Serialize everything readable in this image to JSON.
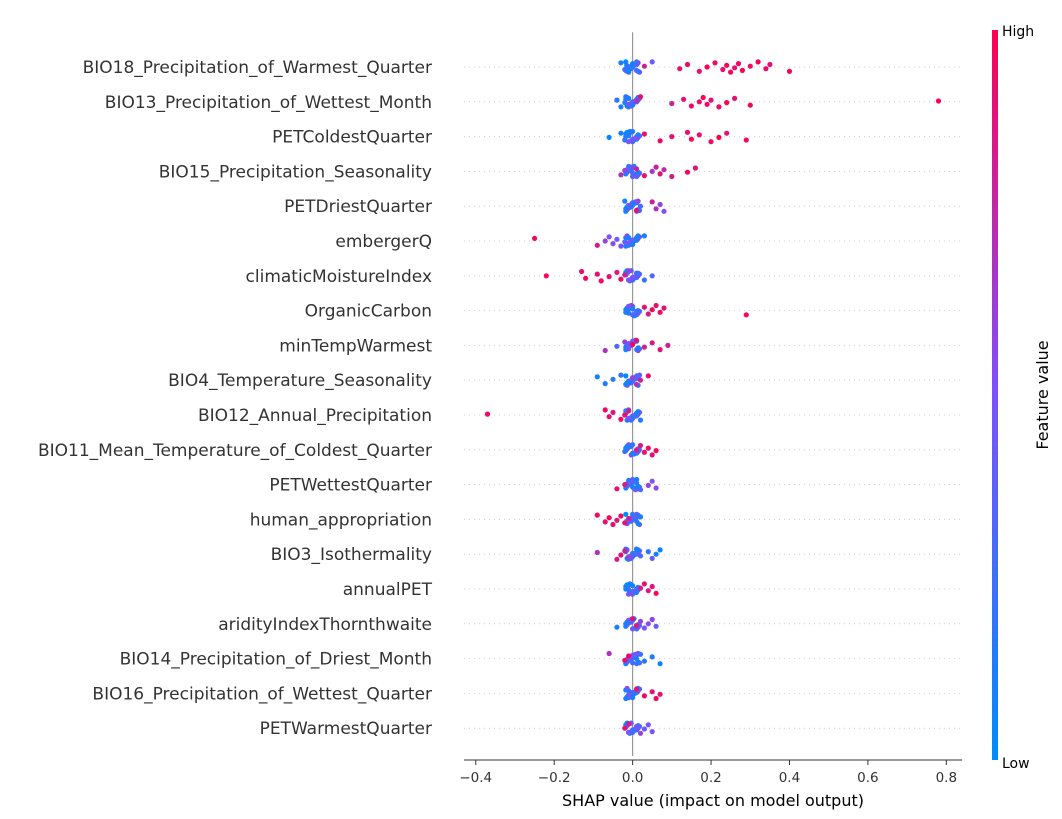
{
  "chart_data": {
    "type": "scatter",
    "subtype": "shap-beeswarm",
    "xlabel": "SHAP value (impact on model output)",
    "xlim": [
      -0.43,
      0.84
    ],
    "xticks": [
      -0.4,
      -0.2,
      0.0,
      0.2,
      0.4,
      0.6,
      0.8
    ],
    "xtick_labels": [
      "−0.4",
      "−0.2",
      "0.0",
      "0.2",
      "0.4",
      "0.6",
      "0.8"
    ],
    "colorbar": {
      "title": "Feature value",
      "high_label": "High",
      "low_label": "Low",
      "high_color": "#ff0051",
      "low_color": "#008bfb"
    },
    "features": [
      {
        "name": "BIO18_Precipitation_of_Warmest_Quarter",
        "points": [
          [
            -0.03,
            0.1
          ],
          [
            -0.02,
            0.2
          ],
          [
            -0.015,
            0.15
          ],
          [
            -0.01,
            0.1
          ],
          [
            -0.005,
            0.12
          ],
          [
            0.0,
            0.1
          ],
          [
            0.01,
            0.3
          ],
          [
            0.03,
            0.8
          ],
          [
            0.05,
            0.45
          ],
          [
            0.12,
            0.9
          ],
          [
            0.14,
            0.95
          ],
          [
            0.17,
            0.9
          ],
          [
            0.19,
            1.0
          ],
          [
            0.21,
            0.95
          ],
          [
            0.23,
            0.9
          ],
          [
            0.24,
            1.0
          ],
          [
            0.25,
            0.95
          ],
          [
            0.26,
            0.9
          ],
          [
            0.27,
            0.95
          ],
          [
            0.28,
            1.0
          ],
          [
            0.3,
            0.95
          ],
          [
            0.32,
            1.0
          ],
          [
            0.34,
            0.95
          ],
          [
            0.35,
            0.9
          ],
          [
            0.4,
            1.0
          ]
        ]
      },
      {
        "name": "BIO13_Precipitation_of_Wettest_Month",
        "points": [
          [
            -0.04,
            0.15
          ],
          [
            -0.03,
            0.1
          ],
          [
            -0.02,
            0.2
          ],
          [
            -0.01,
            0.1
          ],
          [
            0.0,
            0.15
          ],
          [
            0.01,
            0.7
          ],
          [
            0.02,
            0.9
          ],
          [
            0.1,
            0.8
          ],
          [
            0.13,
            0.9
          ],
          [
            0.15,
            0.95
          ],
          [
            0.17,
            0.9
          ],
          [
            0.18,
            1.0
          ],
          [
            0.19,
            0.95
          ],
          [
            0.2,
            0.9
          ],
          [
            0.22,
            0.95
          ],
          [
            0.24,
            1.0
          ],
          [
            0.26,
            0.9
          ],
          [
            0.3,
            1.0
          ],
          [
            0.78,
            1.0
          ]
        ]
      },
      {
        "name": "PETColdestQuarter",
        "points": [
          [
            -0.06,
            0.05
          ],
          [
            -0.03,
            0.1
          ],
          [
            -0.02,
            0.2
          ],
          [
            -0.01,
            0.1
          ],
          [
            0.0,
            0.15
          ],
          [
            0.01,
            0.5
          ],
          [
            0.03,
            0.9
          ],
          [
            0.07,
            0.95
          ],
          [
            0.1,
            0.9
          ],
          [
            0.14,
            0.95
          ],
          [
            0.15,
            1.0
          ],
          [
            0.17,
            0.9
          ],
          [
            0.2,
            0.95
          ],
          [
            0.22,
            1.0
          ],
          [
            0.24,
            0.9
          ],
          [
            0.29,
            0.95
          ]
        ]
      },
      {
        "name": "BIO15_Precipitation_Seasonality",
        "points": [
          [
            -0.03,
            0.7
          ],
          [
            -0.02,
            0.6
          ],
          [
            -0.01,
            0.2
          ],
          [
            0.0,
            0.3
          ],
          [
            0.01,
            0.8
          ],
          [
            0.03,
            0.9
          ],
          [
            0.05,
            0.65
          ],
          [
            0.06,
            0.8
          ],
          [
            0.07,
            0.9
          ],
          [
            0.08,
            0.75
          ],
          [
            0.1,
            0.85
          ],
          [
            0.14,
            0.95
          ],
          [
            0.16,
            0.9
          ]
        ]
      },
      {
        "name": "PETDriestQuarter",
        "points": [
          [
            -0.02,
            0.1
          ],
          [
            -0.01,
            0.2
          ],
          [
            0.0,
            0.15
          ],
          [
            0.01,
            0.9
          ],
          [
            0.02,
            0.3
          ],
          [
            0.05,
            0.8
          ],
          [
            0.06,
            0.7
          ],
          [
            0.07,
            0.6
          ],
          [
            0.08,
            0.5
          ]
        ]
      },
      {
        "name": "embergerQ",
        "points": [
          [
            -0.25,
            0.95
          ],
          [
            -0.09,
            0.85
          ],
          [
            -0.07,
            0.6
          ],
          [
            -0.06,
            0.5
          ],
          [
            -0.05,
            0.55
          ],
          [
            -0.04,
            0.45
          ],
          [
            -0.03,
            0.5
          ],
          [
            -0.02,
            0.4
          ],
          [
            -0.01,
            0.1
          ],
          [
            0.0,
            0.1
          ],
          [
            0.01,
            0.15
          ],
          [
            0.03,
            0.1
          ]
        ]
      },
      {
        "name": "climaticMoistureIndex",
        "points": [
          [
            -0.22,
            0.95
          ],
          [
            -0.13,
            0.9
          ],
          [
            -0.12,
            0.95
          ],
          [
            -0.09,
            0.9
          ],
          [
            -0.08,
            0.95
          ],
          [
            -0.06,
            0.9
          ],
          [
            -0.04,
            0.85
          ],
          [
            -0.03,
            0.95
          ],
          [
            -0.02,
            0.8
          ],
          [
            -0.01,
            0.6
          ],
          [
            0.0,
            0.5
          ],
          [
            0.01,
            0.3
          ],
          [
            0.03,
            0.2
          ],
          [
            0.05,
            0.35
          ]
        ]
      },
      {
        "name": "OrganicCarbon",
        "points": [
          [
            -0.01,
            0.15
          ],
          [
            0.0,
            0.1
          ],
          [
            0.005,
            0.2
          ],
          [
            0.01,
            0.3
          ],
          [
            0.03,
            0.9
          ],
          [
            0.04,
            0.85
          ],
          [
            0.05,
            0.95
          ],
          [
            0.06,
            0.9
          ],
          [
            0.07,
            0.95
          ],
          [
            0.08,
            0.9
          ],
          [
            0.29,
            0.95
          ]
        ]
      },
      {
        "name": "minTempWarmest",
        "points": [
          [
            -0.07,
            0.7
          ],
          [
            -0.04,
            0.3
          ],
          [
            -0.02,
            0.6
          ],
          [
            -0.01,
            0.5
          ],
          [
            0.0,
            0.95
          ],
          [
            0.01,
            0.9
          ],
          [
            0.03,
            0.8
          ],
          [
            0.05,
            0.85
          ],
          [
            0.07,
            0.9
          ],
          [
            0.09,
            0.8
          ]
        ]
      },
      {
        "name": "BIO4_Temperature_Seasonality",
        "points": [
          [
            -0.09,
            0.05
          ],
          [
            -0.07,
            0.1
          ],
          [
            -0.05,
            0.15
          ],
          [
            -0.03,
            0.2
          ],
          [
            -0.01,
            0.1
          ],
          [
            0.0,
            0.6
          ],
          [
            0.01,
            0.7
          ],
          [
            0.02,
            0.8
          ],
          [
            0.04,
            0.9
          ]
        ]
      },
      {
        "name": "BIO12_Annual_Precipitation",
        "points": [
          [
            -0.37,
            0.95
          ],
          [
            -0.07,
            0.95
          ],
          [
            -0.06,
            0.9
          ],
          [
            -0.05,
            0.85
          ],
          [
            -0.03,
            0.95
          ],
          [
            -0.02,
            0.9
          ],
          [
            -0.01,
            0.85
          ],
          [
            0.0,
            0.2
          ],
          [
            0.01,
            0.1
          ],
          [
            0.02,
            0.15
          ]
        ]
      },
      {
        "name": "BIO11_Mean_Temperature_of_Coldest_Quarter",
        "points": [
          [
            -0.02,
            0.2
          ],
          [
            -0.01,
            0.1
          ],
          [
            0.0,
            0.15
          ],
          [
            0.01,
            0.8
          ],
          [
            0.02,
            0.85
          ],
          [
            0.03,
            0.9
          ],
          [
            0.04,
            0.95
          ],
          [
            0.05,
            0.9
          ],
          [
            0.06,
            0.95
          ]
        ]
      },
      {
        "name": "PETWettestQuarter",
        "points": [
          [
            -0.04,
            0.9
          ],
          [
            -0.02,
            0.85
          ],
          [
            -0.01,
            0.2
          ],
          [
            0.0,
            0.1
          ],
          [
            0.01,
            0.15
          ],
          [
            0.02,
            0.3
          ],
          [
            0.04,
            0.6
          ],
          [
            0.05,
            0.5
          ],
          [
            0.06,
            0.55
          ]
        ]
      },
      {
        "name": "human_appropriation",
        "points": [
          [
            -0.09,
            0.95
          ],
          [
            -0.07,
            0.9
          ],
          [
            -0.06,
            0.95
          ],
          [
            -0.05,
            0.9
          ],
          [
            -0.04,
            0.85
          ],
          [
            -0.03,
            0.95
          ],
          [
            -0.02,
            0.9
          ],
          [
            -0.01,
            0.8
          ],
          [
            0.0,
            0.2
          ],
          [
            0.01,
            0.15
          ],
          [
            0.02,
            0.1
          ]
        ]
      },
      {
        "name": "BIO3_Isothermality",
        "points": [
          [
            -0.09,
            0.7
          ],
          [
            -0.04,
            0.85
          ],
          [
            -0.03,
            0.9
          ],
          [
            -0.02,
            0.8
          ],
          [
            -0.01,
            0.6
          ],
          [
            0.0,
            0.2
          ],
          [
            0.01,
            0.1
          ],
          [
            0.02,
            0.3
          ],
          [
            0.04,
            0.15
          ],
          [
            0.05,
            0.4
          ],
          [
            0.06,
            0.1
          ],
          [
            0.07,
            0.05
          ]
        ]
      },
      {
        "name": "annualPET",
        "points": [
          [
            -0.01,
            0.2
          ],
          [
            0.0,
            0.1
          ],
          [
            0.01,
            0.15
          ],
          [
            0.02,
            0.8
          ],
          [
            0.03,
            0.9
          ],
          [
            0.04,
            0.85
          ],
          [
            0.05,
            0.9
          ],
          [
            0.06,
            0.95
          ]
        ]
      },
      {
        "name": "aridityIndexThornthwaite",
        "points": [
          [
            -0.04,
            0.1
          ],
          [
            -0.01,
            0.2
          ],
          [
            0.0,
            0.9
          ],
          [
            0.01,
            0.85
          ],
          [
            0.02,
            0.6
          ],
          [
            0.03,
            0.5
          ],
          [
            0.04,
            0.55
          ],
          [
            0.05,
            0.6
          ],
          [
            0.06,
            0.4
          ]
        ]
      },
      {
        "name": "BIO14_Precipitation_of_Driest_Month",
        "points": [
          [
            -0.06,
            0.7
          ],
          [
            -0.02,
            0.9
          ],
          [
            -0.01,
            0.95
          ],
          [
            0.0,
            0.3
          ],
          [
            0.01,
            0.1
          ],
          [
            0.02,
            0.2
          ],
          [
            0.03,
            0.15
          ],
          [
            0.05,
            0.1
          ],
          [
            0.07,
            0.05
          ]
        ]
      },
      {
        "name": "BIO16_Precipitation_of_Wettest_Quarter",
        "points": [
          [
            -0.01,
            0.2
          ],
          [
            0.0,
            0.1
          ],
          [
            0.005,
            0.15
          ],
          [
            0.01,
            0.9
          ],
          [
            0.03,
            0.95
          ],
          [
            0.05,
            0.9
          ],
          [
            0.06,
            0.95
          ],
          [
            0.07,
            0.9
          ]
        ]
      },
      {
        "name": "PETWarmestQuarter",
        "points": [
          [
            -0.02,
            0.9
          ],
          [
            -0.01,
            0.85
          ],
          [
            0.0,
            0.2
          ],
          [
            0.01,
            0.5
          ],
          [
            0.02,
            0.6
          ],
          [
            0.03,
            0.4
          ],
          [
            0.04,
            0.5
          ],
          [
            0.05,
            0.45
          ]
        ]
      }
    ]
  }
}
